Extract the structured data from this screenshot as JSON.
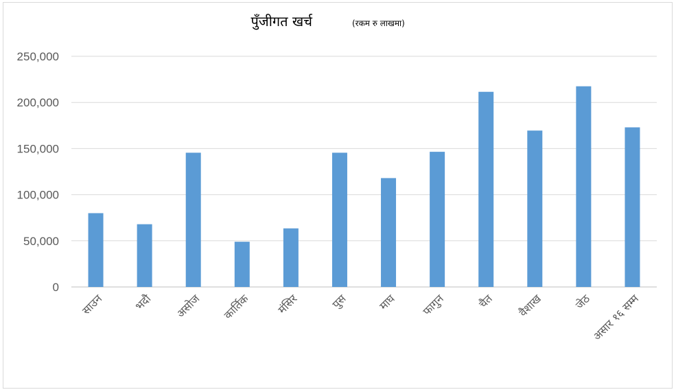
{
  "chart_data": {
    "type": "bar",
    "title": "पुँजीगत खर्च",
    "subtitle": "(रकम रु लाखमा)",
    "categories": [
      "साउन",
      "भदौ",
      "असोज",
      "कार्तिक",
      "मंसिर",
      "पुस",
      "माघ",
      "फागुन",
      "चैत",
      "वैशाख",
      "जेठ",
      "असार १६ सम्म"
    ],
    "values": [
      80000,
      68000,
      145500,
      49000,
      63500,
      145500,
      118000,
      146500,
      211500,
      169500,
      217500,
      173000
    ],
    "ylim": [
      0,
      250000
    ],
    "yticks": [
      "0",
      "50,000",
      "100,000",
      "150,000",
      "200,000",
      "250,000"
    ],
    "ytick_values": [
      0,
      50000,
      100000,
      150000,
      200000,
      250000
    ],
    "bar_color": "#5b9bd5",
    "grid": true,
    "legend": "none"
  }
}
